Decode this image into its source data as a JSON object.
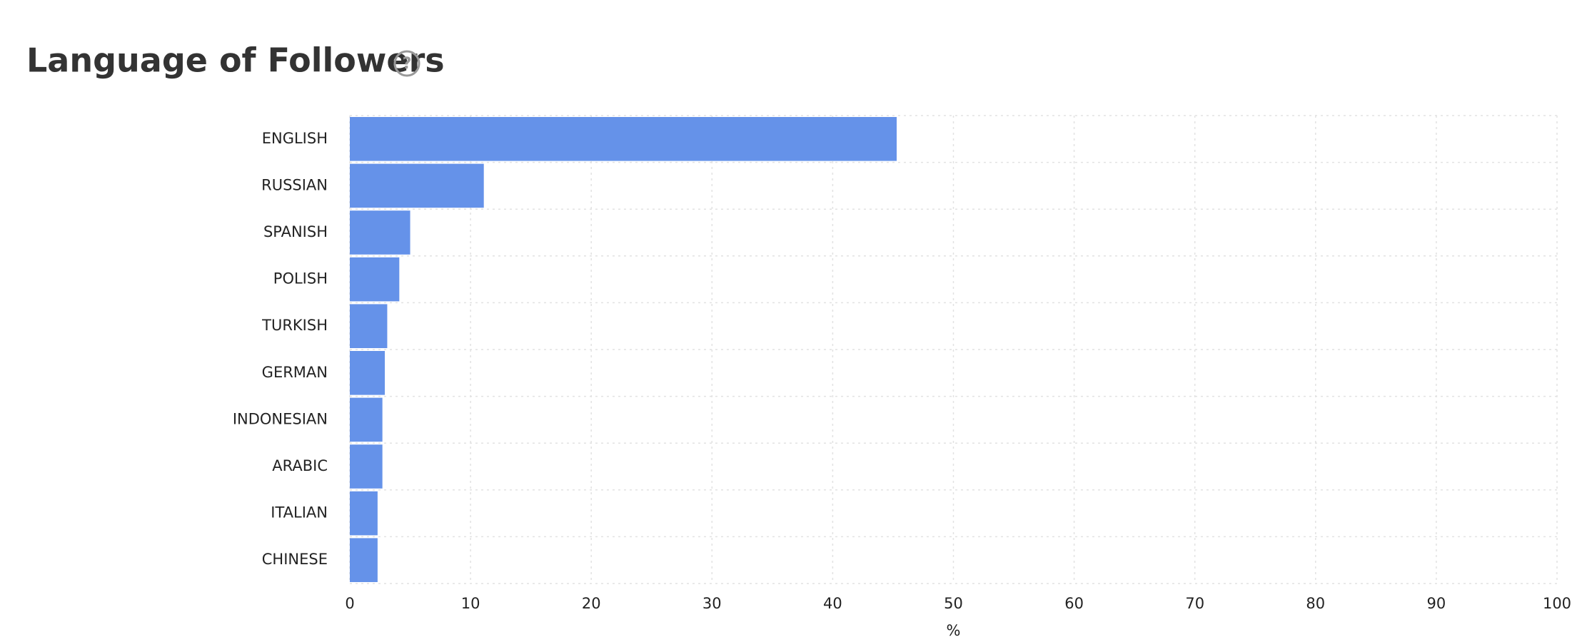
{
  "chart_data": {
    "type": "barh",
    "title": "Language of Followers",
    "help_icon": "?",
    "categories": [
      "ENGLISH",
      "RUSSIAN",
      "SPANISH",
      "POLISH",
      "TURKISH",
      "GERMAN",
      "INDONESIAN",
      "ARABIC",
      "ITALIAN",
      "CHINESE"
    ],
    "values": [
      45.3,
      11.1,
      5.0,
      4.1,
      3.1,
      2.9,
      2.7,
      2.7,
      2.3,
      2.3
    ],
    "color": "#6592e9",
    "xlabel": "%",
    "xlim": [
      0,
      100
    ],
    "xticks": [
      0,
      10,
      20,
      30,
      40,
      50,
      60,
      70,
      80,
      90,
      100
    ],
    "grid": true
  }
}
